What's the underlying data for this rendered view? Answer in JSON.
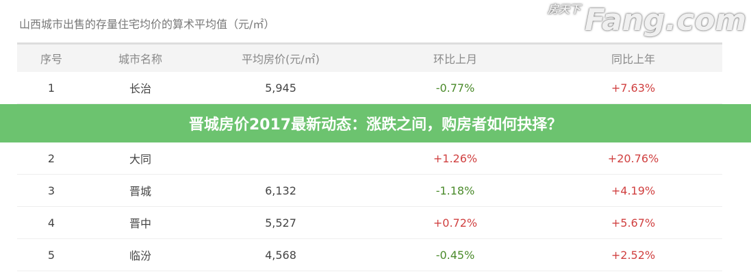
{
  "title": "山西城市出售的存量住宅均价的算术平均值（元/㎡）",
  "headers": [
    "序号",
    "城市名称",
    "平均房价(元/㎡)",
    "环比上月",
    "同比上年"
  ],
  "rows": [
    {
      "no": "1",
      "city": "长治",
      "price": "5,945",
      "mom": "-0.77%",
      "yoy": "+7.63%"
    },
    {
      "no": "2",
      "city": "大同",
      "price": "",
      "mom": "+1.26%",
      "yoy": "+20.76%"
    },
    {
      "no": "3",
      "city": "晋城",
      "price": "6,132",
      "mom": "-1.18%",
      "yoy": "+4.19%"
    },
    {
      "no": "4",
      "city": "晋中",
      "price": "5,527",
      "mom": "+0.72%",
      "yoy": "+5.67%"
    },
    {
      "no": "5",
      "city": "临汾",
      "price": "4,568",
      "mom": "-0.45%",
      "yoy": "+2.52%"
    }
  ],
  "banner": "晋城房价2017最新动态：涨跌之间，购房者如何抉择？",
  "watermark": {
    "main": "Fang.com",
    "sub": "房天下"
  },
  "colors": {
    "negative": "#4a8a2a",
    "positive": "#d04040",
    "banner": "#6cc36f"
  }
}
